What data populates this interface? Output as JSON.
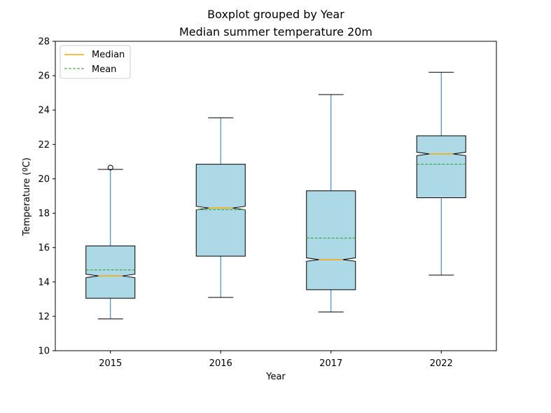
{
  "chart_data": {
    "type": "boxplot",
    "suptitle": "Boxplot grouped by Year",
    "title": "Median summer temperature 20m",
    "xlabel": "Year",
    "ylabel": "Temperature (ºC)",
    "ylim": [
      10,
      28
    ],
    "yticks": [
      "10",
      "12",
      "14",
      "16",
      "18",
      "20",
      "22",
      "24",
      "26",
      "28"
    ],
    "categories": [
      "2015",
      "2016",
      "2017",
      "2022"
    ],
    "boxes": [
      {
        "whisker_low": 11.85,
        "q1": 13.05,
        "notch_low": 14.25,
        "median": 14.35,
        "notch_high": 14.45,
        "q3": 16.1,
        "whisker_high": 20.55,
        "mean": 14.7,
        "outliers": [
          20.65
        ]
      },
      {
        "whisker_low": 13.1,
        "q1": 15.5,
        "notch_low": 18.2,
        "median": 18.3,
        "notch_high": 18.4,
        "q3": 20.85,
        "whisker_high": 23.55,
        "mean": 18.2,
        "outliers": []
      },
      {
        "whisker_low": 12.25,
        "q1": 13.55,
        "notch_low": 15.2,
        "median": 15.3,
        "notch_high": 15.4,
        "q3": 19.3,
        "whisker_high": 24.9,
        "mean": 16.55,
        "outliers": []
      },
      {
        "whisker_low": 14.4,
        "q1": 18.9,
        "notch_low": 21.35,
        "median": 21.45,
        "notch_high": 21.55,
        "q3": 22.5,
        "whisker_high": 26.2,
        "mean": 20.85,
        "outliers": []
      }
    ],
    "legend": {
      "position": "top-left",
      "entries": [
        {
          "label": "Median",
          "style": "solid",
          "color": "#ffa500"
        },
        {
          "label": "Mean",
          "style": "dashed",
          "color": "#2ca02c"
        }
      ]
    },
    "colors": {
      "box_fill": "#add8e6",
      "box_edge": "#000000",
      "whisker": "#1f77b4",
      "median": "#ffa500",
      "mean": "#2ca02c"
    }
  }
}
